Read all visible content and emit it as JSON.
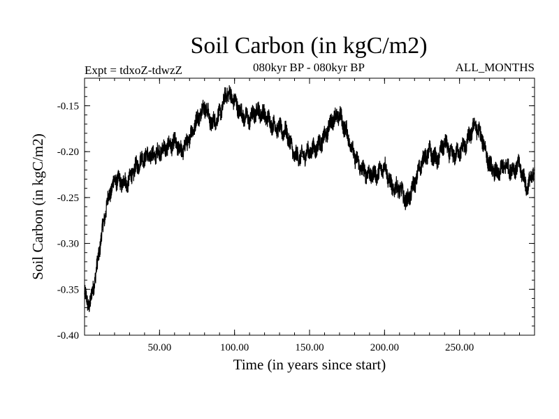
{
  "chart_data": {
    "type": "line",
    "title": "Soil Carbon (in kgC/m2)",
    "subtitle_left": "Expt = tdxoZ-tdwzZ",
    "subtitle_center": "080kyr BP - 080kyr BP",
    "subtitle_right": "ALL_MONTHS",
    "xlabel": "Time (in years since start)",
    "ylabel": "Soil Carbon (in kgC/m2)",
    "xlim": [
      0,
      300
    ],
    "ylim": [
      -0.4,
      -0.12
    ],
    "x_ticks": [
      50,
      100,
      150,
      200,
      250
    ],
    "x_tick_labels": [
      "50.00",
      "100.00",
      "150.00",
      "200.00",
      "250.00"
    ],
    "y_ticks": [
      -0.15,
      -0.2,
      -0.25,
      -0.3,
      -0.35,
      -0.4
    ],
    "y_tick_labels": [
      "-0.15",
      "-0.20",
      "-0.25",
      "-0.30",
      "-0.35",
      "-0.40"
    ],
    "grid": false,
    "line_color": "#000000",
    "series": [
      {
        "x": [
          0,
          2,
          4,
          6,
          8,
          10,
          12,
          14,
          16,
          18,
          20,
          22,
          24,
          26,
          28,
          30,
          35,
          40,
          45,
          50,
          55,
          60,
          65,
          70,
          75,
          80,
          85,
          90,
          95,
          100,
          105,
          110,
          115,
          120,
          125,
          130,
          135,
          140,
          145,
          150,
          155,
          160,
          165,
          170,
          175,
          180,
          185,
          190,
          195,
          200,
          205,
          210,
          215,
          220,
          225,
          230,
          235,
          240,
          245,
          250,
          255,
          260,
          265,
          270,
          275,
          280,
          285,
          290,
          295,
          300
        ],
        "y": [
          -0.355,
          -0.365,
          -0.365,
          -0.345,
          -0.33,
          -0.305,
          -0.285,
          -0.265,
          -0.25,
          -0.24,
          -0.232,
          -0.23,
          -0.235,
          -0.232,
          -0.235,
          -0.23,
          -0.215,
          -0.205,
          -0.205,
          -0.2,
          -0.195,
          -0.19,
          -0.2,
          -0.185,
          -0.165,
          -0.15,
          -0.17,
          -0.16,
          -0.135,
          -0.145,
          -0.16,
          -0.165,
          -0.155,
          -0.16,
          -0.17,
          -0.175,
          -0.18,
          -0.205,
          -0.205,
          -0.2,
          -0.195,
          -0.185,
          -0.165,
          -0.16,
          -0.18,
          -0.205,
          -0.22,
          -0.225,
          -0.225,
          -0.215,
          -0.24,
          -0.24,
          -0.255,
          -0.235,
          -0.21,
          -0.2,
          -0.21,
          -0.19,
          -0.205,
          -0.2,
          -0.19,
          -0.17,
          -0.185,
          -0.215,
          -0.225,
          -0.215,
          -0.22,
          -0.215,
          -0.24,
          -0.22
        ]
      }
    ]
  }
}
